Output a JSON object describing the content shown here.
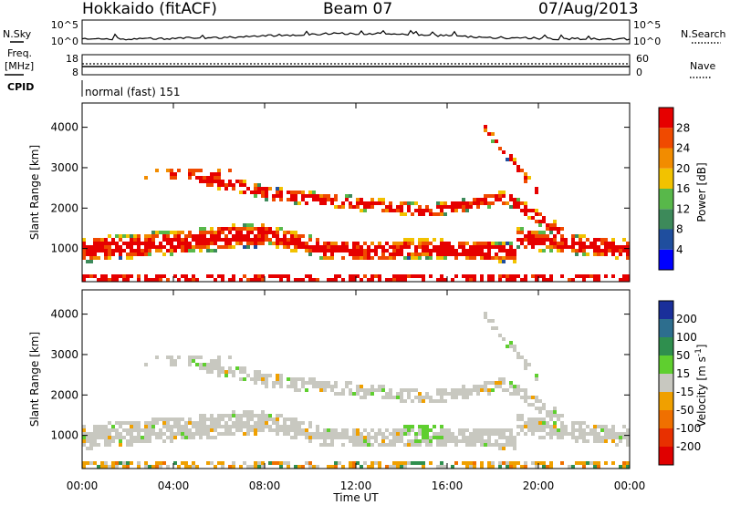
{
  "header": {
    "station": "Hokkaido (fitACF)",
    "beam": "Beam 07",
    "date": "07/Aug/2013"
  },
  "strips": {
    "nsky_label": "N.Sky",
    "nsky_ticks": [
      "10^5",
      "10^0"
    ],
    "nsearch_label": "N.Search",
    "nsearch_ticks": [
      "10^5",
      "10^0"
    ],
    "freq_label_line1": "Freq.",
    "freq_label_line2": "[MHz]",
    "freq_ticks": [
      "18",
      "8"
    ],
    "nave_label": "Nave",
    "nave_ticks": [
      "60",
      "0"
    ],
    "cpid_label": "CPID",
    "cpid_value": "normal (fast) 151"
  },
  "chart_data": [
    {
      "type": "heatmap",
      "title": "",
      "xlabel": "",
      "ylabel": "Slant Range [km]",
      "x_ticks": [
        "00:00",
        "04:00",
        "08:00",
        "12:00",
        "16:00",
        "20:00",
        "00:00"
      ],
      "y_ticks": [
        1000,
        2000,
        3000,
        4000
      ],
      "xlim_hours": [
        0,
        24
      ],
      "ylim": [
        180,
        4600
      ],
      "colorbar": {
        "label": "Power [dB]",
        "ticks": [
          4,
          8,
          12,
          16,
          20,
          24,
          28
        ],
        "range": [
          0,
          32
        ],
        "colors": [
          "#0000ff",
          "#1f4e9e",
          "#3d8a5a",
          "#58b84a",
          "#f2c200",
          "#f28c00",
          "#f04a00",
          "#e60000"
        ]
      }
    },
    {
      "type": "heatmap",
      "title": "",
      "xlabel": "Time UT",
      "ylabel": "Slant Range [km]",
      "x_ticks": [
        "00:00",
        "04:00",
        "08:00",
        "12:00",
        "16:00",
        "20:00",
        "00:00"
      ],
      "y_ticks": [
        1000,
        2000,
        3000,
        4000
      ],
      "xlim_hours": [
        0,
        24
      ],
      "ylim": [
        180,
        4600
      ],
      "colorbar": {
        "label": "Velocity [m s^-1]",
        "ticks": [
          200,
          100,
          50,
          15,
          -15,
          -50,
          -100,
          -200
        ],
        "range": [
          -250,
          250
        ],
        "colors": [
          "#1a2f9a",
          "#2d6e8e",
          "#2f8f4e",
          "#5fcf2f",
          "#c8c8c0",
          "#f0a000",
          "#f07000",
          "#e83000",
          "#e00000"
        ]
      }
    }
  ]
}
